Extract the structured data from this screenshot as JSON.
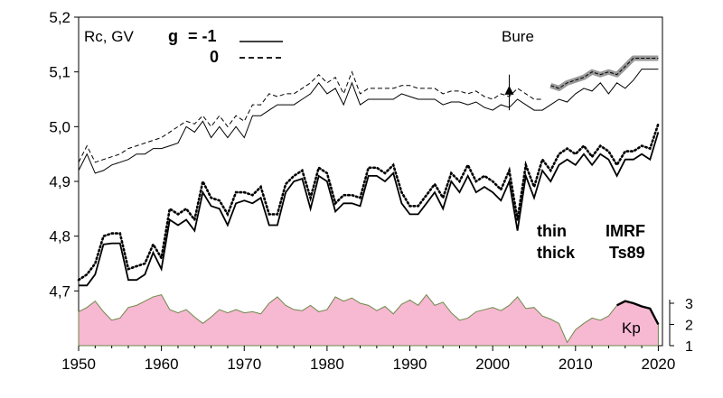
{
  "chart_data": {
    "type": "line",
    "y_axis_label": "Rc, GV",
    "station": "Bure",
    "xlim": [
      1950,
      2020.5
    ],
    "ylim": [
      4.6,
      5.2
    ],
    "x_ticks": [
      "1950",
      "1960",
      "1970",
      "1980",
      "1990",
      "2000",
      "2010",
      "2020"
    ],
    "y_ticks": [
      "4,7",
      "4,8",
      "4,9",
      "5,0",
      "5,1",
      "5,2"
    ],
    "legend": {
      "g_label": "g",
      "g_equals": "= -1",
      "zero_label": "0"
    },
    "labels": {
      "thin": "thin",
      "thick": "thick",
      "imrf": "IMRF",
      "ts89": "Ts89",
      "kp": "Kp"
    },
    "kp_axis": {
      "range": [
        1,
        3
      ],
      "ticks": [
        "1",
        "2",
        "3"
      ]
    },
    "series": [
      {
        "name": "IMRF thin, g = -1",
        "style": "solid-thin",
        "x": [
          1950,
          1951,
          1952,
          1953,
          1954,
          1955,
          1956,
          1957,
          1958,
          1959,
          1960,
          1961,
          1962,
          1963,
          1964,
          1965,
          1966,
          1967,
          1968,
          1969,
          1970,
          1971,
          1972,
          1973,
          1974,
          1975,
          1976,
          1977,
          1978,
          1979,
          1980,
          1981,
          1982,
          1983,
          1984,
          1985,
          1986,
          1987,
          1988,
          1989,
          1990,
          1991,
          1992,
          1993,
          1994,
          1995,
          1996,
          1997,
          1998,
          1999,
          2000,
          2001,
          2002,
          2003,
          2004,
          2005,
          2006,
          2007,
          2008,
          2009,
          2010,
          2011,
          2012,
          2013,
          2014,
          2015,
          2016,
          2017,
          2018,
          2019,
          2020
        ],
        "y": [
          4.92,
          4.95,
          4.915,
          4.92,
          4.93,
          4.935,
          4.94,
          4.95,
          4.95,
          4.96,
          4.96,
          4.965,
          4.97,
          5.0,
          4.99,
          5.01,
          4.98,
          5.0,
          4.98,
          5.0,
          4.98,
          5.02,
          5.02,
          5.03,
          5.04,
          5.04,
          5.04,
          5.05,
          5.06,
          5.08,
          5.06,
          5.07,
          5.04,
          5.08,
          5.04,
          5.05,
          5.05,
          5.05,
          5.05,
          5.06,
          5.055,
          5.05,
          5.05,
          5.05,
          5.04,
          5.045,
          5.045,
          5.04,
          5.045,
          5.035,
          5.03,
          5.04,
          5.035,
          5.05,
          5.04,
          5.03,
          5.03,
          5.04,
          5.05,
          5.045,
          5.06,
          5.07,
          5.065,
          5.08,
          5.06,
          5.08,
          5.07,
          5.085,
          5.105,
          5.105,
          5.105
        ]
      },
      {
        "name": "IMRF thin, g = 0",
        "style": "dashed-thin",
        "x": [
          1950,
          1951,
          1952,
          1953,
          1954,
          1955,
          1956,
          1957,
          1958,
          1959,
          1960,
          1961,
          1962,
          1963,
          1964,
          1965,
          1966,
          1967,
          1968,
          1969,
          1970,
          1971,
          1972,
          1973,
          1974,
          1975,
          1976,
          1977,
          1978,
          1979,
          1980,
          1981,
          1982,
          1983,
          1984,
          1985,
          1986,
          1987,
          1988,
          1989,
          1990,
          1991,
          1992,
          1993,
          1994,
          1995,
          1996,
          1997,
          1998,
          1999,
          2000,
          2001,
          2002,
          2003,
          2004,
          2005,
          2006
        ],
        "y": [
          4.935,
          4.965,
          4.935,
          4.94,
          4.945,
          4.95,
          4.96,
          4.965,
          4.97,
          4.975,
          4.98,
          4.99,
          5.0,
          5.01,
          5.005,
          5.02,
          5.0,
          5.02,
          5.0,
          5.02,
          5.01,
          5.04,
          5.04,
          5.06,
          5.055,
          5.06,
          5.06,
          5.07,
          5.08,
          5.095,
          5.08,
          5.09,
          5.06,
          5.1,
          5.06,
          5.07,
          5.07,
          5.07,
          5.07,
          5.075,
          5.075,
          5.07,
          5.07,
          5.07,
          5.06,
          5.065,
          5.065,
          5.06,
          5.065,
          5.055,
          5.05,
          5.06,
          5.055,
          5.07,
          5.06,
          5.05,
          5.05
        ]
      },
      {
        "name": "Ts89 shaded, 2007-2020",
        "style": "gray-band",
        "x": [
          2007,
          2008,
          2009,
          2010,
          2011,
          2012,
          2013,
          2014,
          2015,
          2016,
          2017,
          2018,
          2019,
          2020
        ],
        "y": [
          5.075,
          5.07,
          5.08,
          5.085,
          5.09,
          5.1,
          5.095,
          5.1,
          5.095,
          5.11,
          5.125,
          5.125,
          5.125,
          5.125
        ]
      },
      {
        "name": "IMRF thick, g = -1",
        "style": "solid-thick",
        "x": [
          1950,
          1951,
          1952,
          1953,
          1954,
          1955,
          1956,
          1957,
          1958,
          1959,
          1960,
          1961,
          1962,
          1963,
          1964,
          1965,
          1966,
          1967,
          1968,
          1969,
          1970,
          1971,
          1972,
          1973,
          1974,
          1975,
          1976,
          1977,
          1978,
          1979,
          1980,
          1981,
          1982,
          1983,
          1984,
          1985,
          1986,
          1987,
          1988,
          1989,
          1990,
          1991,
          1992,
          1993,
          1994,
          1995,
          1996,
          1997,
          1998,
          1999,
          2000,
          2001,
          2002,
          2003,
          2004,
          2005,
          2006,
          2007,
          2008,
          2009,
          2010,
          2011,
          2012,
          2013,
          2014,
          2015,
          2016,
          2017,
          2018,
          2019,
          2020
        ],
        "y": [
          4.71,
          4.71,
          4.73,
          4.785,
          4.787,
          4.787,
          4.72,
          4.72,
          4.73,
          4.77,
          4.74,
          4.83,
          4.82,
          4.83,
          4.81,
          4.88,
          4.855,
          4.85,
          4.82,
          4.86,
          4.865,
          4.86,
          4.87,
          4.82,
          4.82,
          4.88,
          4.9,
          4.905,
          4.85,
          4.91,
          4.9,
          4.845,
          4.86,
          4.86,
          4.855,
          4.91,
          4.91,
          4.9,
          4.915,
          4.86,
          4.84,
          4.84,
          4.86,
          4.88,
          4.85,
          4.9,
          4.88,
          4.91,
          4.88,
          4.89,
          4.88,
          4.865,
          4.9,
          4.81,
          4.91,
          4.87,
          4.92,
          4.9,
          4.93,
          4.94,
          4.93,
          4.95,
          4.93,
          4.95,
          4.94,
          4.91,
          4.94,
          4.94,
          4.95,
          4.94,
          4.99
        ]
      },
      {
        "name": "IMRF thick, g = 0",
        "style": "dotted-thick",
        "x": [
          1950,
          1951,
          1952,
          1953,
          1954,
          1955,
          1956,
          1957,
          1958,
          1959,
          1960,
          1961,
          1962,
          1963,
          1964,
          1965,
          1966,
          1967,
          1968,
          1969,
          1970,
          1971,
          1972,
          1973,
          1974,
          1975,
          1976,
          1977,
          1978,
          1979,
          1980,
          1981,
          1982,
          1983,
          1984,
          1985,
          1986,
          1987,
          1988,
          1989,
          1990,
          1991,
          1992,
          1993,
          1994,
          1995,
          1996,
          1997,
          1998,
          1999,
          2000,
          2001,
          2002,
          2003,
          2004,
          2005,
          2006,
          2007,
          2008,
          2009,
          2010,
          2011,
          2012,
          2013,
          2014,
          2015,
          2016,
          2017,
          2018,
          2019,
          2020
        ],
        "y": [
          4.72,
          4.73,
          4.75,
          4.8,
          4.805,
          4.805,
          4.74,
          4.745,
          4.75,
          4.785,
          4.76,
          4.85,
          4.84,
          4.85,
          4.83,
          4.9,
          4.87,
          4.865,
          4.84,
          4.88,
          4.88,
          4.875,
          4.89,
          4.84,
          4.84,
          4.895,
          4.91,
          4.92,
          4.87,
          4.925,
          4.915,
          4.86,
          4.875,
          4.875,
          4.87,
          4.925,
          4.925,
          4.915,
          4.93,
          4.88,
          4.855,
          4.855,
          4.875,
          4.895,
          4.87,
          4.915,
          4.9,
          4.93,
          4.9,
          4.91,
          4.9,
          4.885,
          4.92,
          4.83,
          4.93,
          4.89,
          4.94,
          4.92,
          4.95,
          4.96,
          4.95,
          4.965,
          4.945,
          4.965,
          4.955,
          4.93,
          4.955,
          4.955,
          4.965,
          4.96,
          5.005
        ]
      }
    ],
    "bure_measurement": {
      "year": 2002,
      "value": 5.065,
      "error": [
        5.03,
        5.095
      ]
    },
    "kp": {
      "name": "Kp",
      "x": [
        1950,
        1951,
        1952,
        1953,
        1954,
        1955,
        1956,
        1957,
        1958,
        1959,
        1960,
        1961,
        1962,
        1963,
        1964,
        1965,
        1966,
        1967,
        1968,
        1969,
        1970,
        1971,
        1972,
        1973,
        1974,
        1975,
        1976,
        1977,
        1978,
        1979,
        1980,
        1981,
        1982,
        1983,
        1984,
        1985,
        1986,
        1987,
        1988,
        1989,
        1990,
        1991,
        1992,
        1993,
        1994,
        1995,
        1996,
        1997,
        1998,
        1999,
        2000,
        2001,
        2002,
        2003,
        2004,
        2005,
        2006,
        2007,
        2008,
        2009,
        2010,
        2011,
        2012,
        2013,
        2014,
        2015,
        2016,
        2017,
        2018,
        2019,
        2020
      ],
      "y": [
        2.6,
        2.8,
        3.1,
        2.6,
        2.2,
        2.3,
        2.8,
        2.9,
        3.1,
        3.3,
        3.4,
        2.7,
        2.55,
        2.7,
        2.35,
        2.05,
        2.35,
        2.7,
        2.55,
        2.7,
        2.55,
        2.6,
        2.5,
        3.0,
        3.3,
        2.9,
        2.7,
        2.65,
        2.9,
        2.6,
        2.7,
        3.3,
        3.1,
        3.25,
        3.0,
        2.9,
        2.65,
        2.85,
        2.5,
        2.95,
        3.15,
        2.9,
        3.4,
        2.9,
        3.05,
        2.55,
        2.2,
        2.3,
        2.6,
        2.7,
        2.8,
        2.65,
        2.9,
        3.3,
        2.75,
        2.8,
        2.4,
        2.25,
        2.05,
        1.15,
        1.75,
        2.05,
        2.3,
        2.2,
        2.4,
        2.9,
        3.1,
        3.0,
        2.85,
        2.75,
        2.0
      ]
    }
  }
}
